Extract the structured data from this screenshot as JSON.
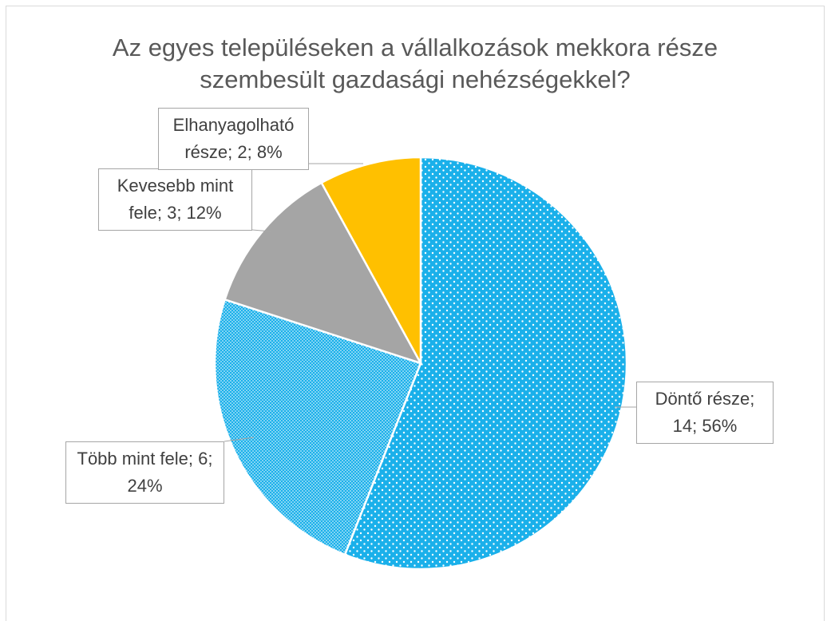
{
  "chart_data": {
    "type": "pie",
    "title": "Az egyes településeken a vállalkozások mekkora része szembesült gazdasági nehézségekkel?",
    "categories": [
      "Döntő része",
      "Több mint fele",
      "Kevesebb mint fele",
      "Elhanyagolható része"
    ],
    "values": [
      14,
      6,
      3,
      2
    ],
    "value_labels": [
      "Döntő része; 14; 56%",
      "Több mint fele; 6; 24%",
      "Kevesebb mint fele; 3; 12%",
      "Elhanyagolható része; 2; 8%"
    ],
    "colors": [
      "#1ab0ea",
      "#1ab0ea",
      "#a5a5a5",
      "#ffc000"
    ],
    "patterns": [
      "dots",
      "fine-dots",
      null,
      null
    ]
  }
}
